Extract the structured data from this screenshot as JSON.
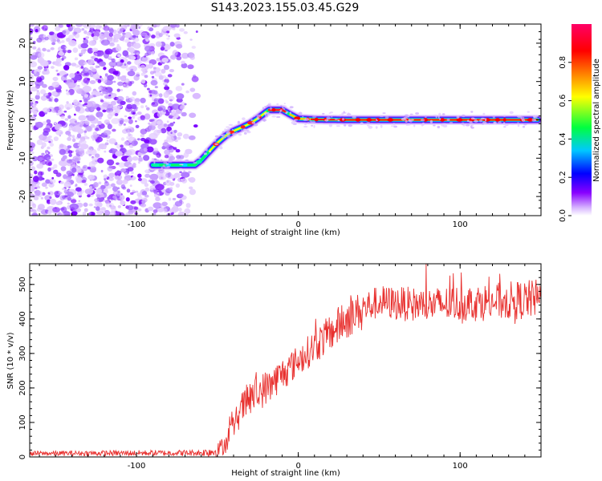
{
  "figure": {
    "title": "S143.2023.155.03.45.G29"
  },
  "chart_data": [
    {
      "type": "heatmap",
      "xlabel": "Height of straight line (km)",
      "ylabel": "Frequency (Hz)",
      "xlim": [
        -166,
        150
      ],
      "ylim": [
        -25,
        25
      ],
      "x_ticks": [
        -100,
        0,
        100
      ],
      "y_ticks": [
        -20,
        -10,
        0,
        10,
        20
      ],
      "ridge": {
        "x": [
          -90,
          -80,
          -70,
          -64,
          -60,
          -55,
          -50,
          -45,
          -40,
          -35,
          -30,
          -25,
          -20,
          -18,
          -10,
          -5,
          0,
          10,
          30,
          60,
          100,
          148
        ],
        "y": [
          -11.8,
          -11.8,
          -11.8,
          -11.8,
          -10.5,
          -8.2,
          -6.0,
          -4.2,
          -2.9,
          -2.0,
          -1.0,
          0.4,
          2.0,
          2.6,
          2.6,
          1.4,
          0.3,
          0.1,
          0.0,
          0.0,
          0.0,
          0.0
        ]
      },
      "noise_region_x": [
        -166,
        -62
      ],
      "colorbar": {
        "label": "Normalized spectral amplitude",
        "range": [
          0,
          1
        ],
        "ticks": [
          "0.0",
          "0.2",
          "0.4",
          "0.6",
          "0.8"
        ],
        "tick_values": [
          0,
          0.2,
          0.4,
          0.6,
          0.8
        ],
        "colors": [
          "#ffffff",
          "#d9b8ff",
          "#8800ff",
          "#0000ff",
          "#00c8ff",
          "#00ff40",
          "#ffff00",
          "#ff8000",
          "#ff0000",
          "#ff0066"
        ]
      }
    },
    {
      "type": "line",
      "xlabel": "Height of straight line (km)",
      "ylabel": "SNR (10 * v/v)",
      "xlim": [
        -166,
        150
      ],
      "ylim": [
        0,
        560
      ],
      "x_ticks": [
        -100,
        0,
        100
      ],
      "y_ticks": [
        0,
        100,
        200,
        300,
        400,
        500
      ],
      "line_color": "#e8302e",
      "trend": {
        "x": [
          -166,
          -60,
          -50,
          -45,
          -40,
          -35,
          -30,
          -25,
          -20,
          -10,
          0,
          10,
          20,
          30,
          40,
          50,
          60,
          80,
          100,
          120,
          140,
          150
        ],
        "y": [
          10,
          12,
          18,
          40,
          90,
          140,
          170,
          185,
          200,
          240,
          280,
          320,
          360,
          400,
          430,
          450,
          445,
          440,
          445,
          450,
          455,
          460
        ]
      },
      "noise": {
        "x": [
          -166,
          -60,
          -45,
          -30,
          0,
          30,
          45,
          150
        ],
        "amp": [
          7,
          9,
          30,
          55,
          45,
          60,
          48,
          58
        ]
      }
    }
  ]
}
